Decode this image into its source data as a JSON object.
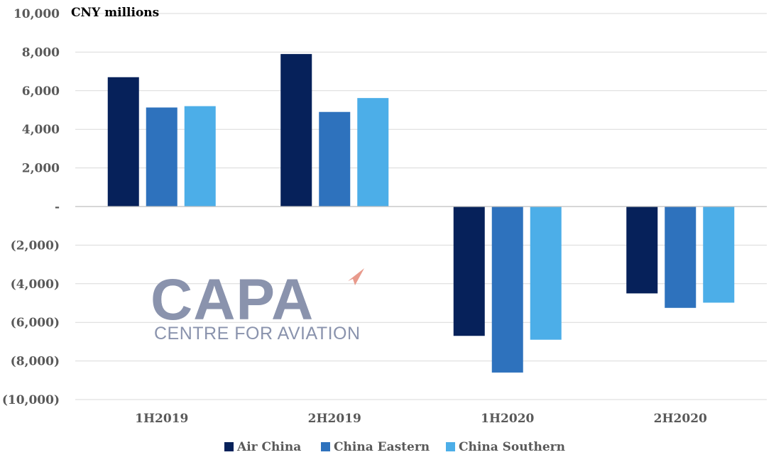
{
  "chart_data": {
    "type": "bar",
    "unit_label": "CNY millions",
    "categories": [
      "1H2019",
      "2H2019",
      "1H2020",
      "2H2020"
    ],
    "series": [
      {
        "name": "Air China",
        "color": "#06215a",
        "values": [
          6700,
          7900,
          -6700,
          -4500
        ]
      },
      {
        "name": "China Eastern",
        "color": "#2e72bd",
        "values": [
          5130,
          4900,
          -8600,
          -5250
        ]
      },
      {
        "name": "China Southern",
        "color": "#4caee8",
        "values": [
          5200,
          5620,
          -6900,
          -4980
        ]
      }
    ],
    "ylim": [
      -10000,
      10000
    ],
    "y_ticks": [
      {
        "value": 10000,
        "label": "10,000"
      },
      {
        "value": 8000,
        "label": "8,000"
      },
      {
        "value": 6000,
        "label": "6,000"
      },
      {
        "value": 4000,
        "label": "4,000"
      },
      {
        "value": 2000,
        "label": "2,000"
      },
      {
        "value": 0,
        "label": "-"
      },
      {
        "value": -2000,
        "label": "(2,000)"
      },
      {
        "value": -4000,
        "label": "(4,000)"
      },
      {
        "value": -6000,
        "label": "(6,000)"
      },
      {
        "value": -8000,
        "label": "(8,000)"
      },
      {
        "value": -10000,
        "label": "(10,000)"
      }
    ],
    "grid": true,
    "legend_position": "bottom-center"
  },
  "watermark": {
    "logo_text": "CAPA",
    "subtitle": "CENTRE FOR AVIATION"
  }
}
